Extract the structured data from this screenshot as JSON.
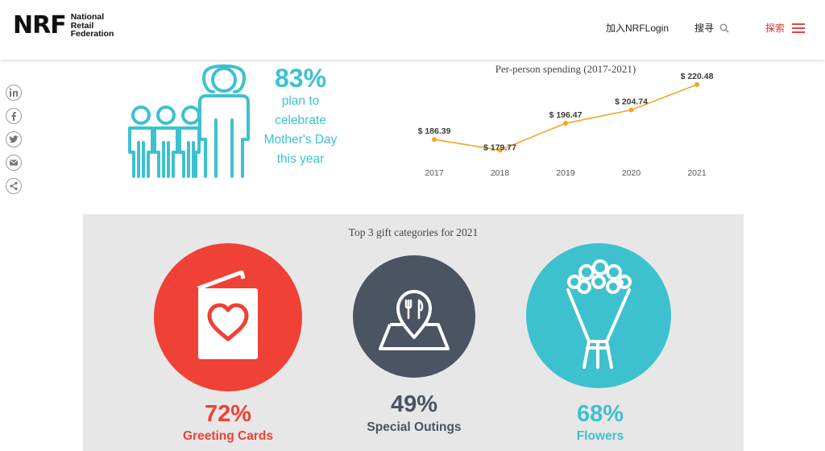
{
  "header": {
    "logo_mark": "NRF",
    "logo_lines": [
      "National",
      "Retail",
      "Federation"
    ],
    "join_label": "加入NRFLogin",
    "search_label": "搜寻",
    "explore_label": "探索",
    "accent_color": "#e2302f"
  },
  "share": {
    "icons": [
      "linkedin-icon",
      "facebook-icon",
      "twitter-icon",
      "email-icon",
      "share-icon"
    ]
  },
  "stat": {
    "percent": "83%",
    "lines": [
      "plan to",
      "celebrate",
      "Mother's Day",
      "this year"
    ],
    "color": "#3ec1cf"
  },
  "chart_data": {
    "type": "line",
    "title": "Per-person spending (2017-2021)",
    "x": [
      "2017",
      "2018",
      "2019",
      "2020",
      "2021"
    ],
    "values": [
      186.39,
      179.77,
      196.47,
      204.74,
      220.48
    ],
    "labels": [
      "$  186.39",
      "$ 179.77",
      "$  196.47",
      "$  204.74",
      "$ 220.48"
    ],
    "line_color": "#f5a623",
    "grid": false
  },
  "gifts": {
    "title": "Top 3 gift categories for 2021",
    "items": [
      {
        "percent": "72%",
        "label": "Greeting Cards",
        "color": "#ef4136",
        "icon": "greeting-card-icon"
      },
      {
        "percent": "49%",
        "label": "Special Outings",
        "color": "#4a5463",
        "icon": "outing-map-icon"
      },
      {
        "percent": "68%",
        "label": "Flowers",
        "color": "#3ec1cf",
        "icon": "flowers-icon"
      }
    ]
  }
}
